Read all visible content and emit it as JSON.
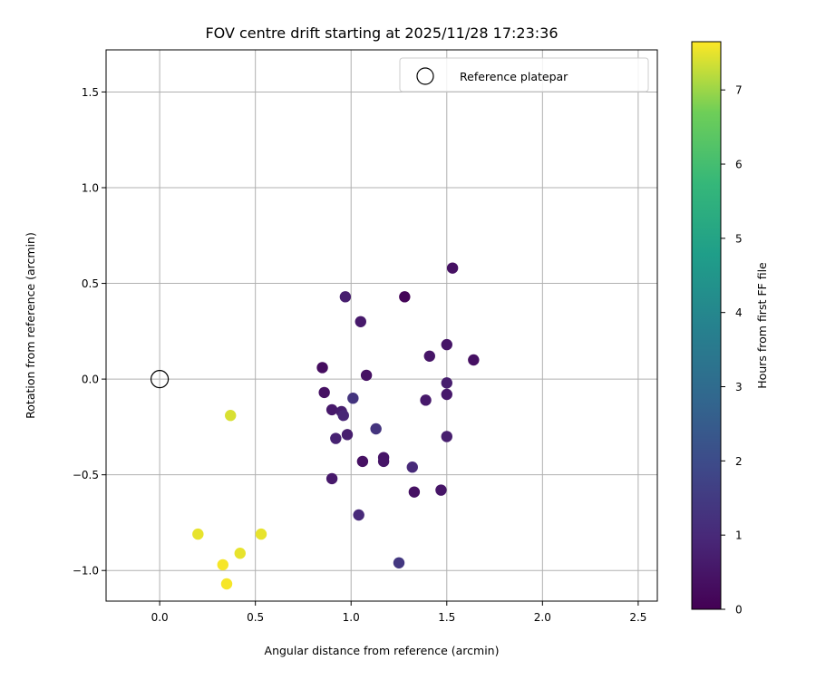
{
  "chart_data": {
    "type": "scatter",
    "title": "FOV centre drift starting at 2025/11/28 17:23:36",
    "xlabel": "Angular distance from reference (arcmin)",
    "ylabel": "Rotation from reference (arcmin)",
    "xlim": [
      -0.28,
      2.6
    ],
    "ylim": [
      -1.16,
      1.72
    ],
    "xticks": [
      0.0,
      0.5,
      1.0,
      1.5,
      2.0,
      2.5
    ],
    "xtick_labels": [
      "0.0",
      "0.5",
      "1.0",
      "1.5",
      "2.0",
      "2.5"
    ],
    "yticks": [
      -1.0,
      -0.5,
      0.0,
      0.5,
      1.0,
      1.5
    ],
    "ytick_labels": [
      "−1.0",
      "−0.5",
      "0.0",
      "0.5",
      "1.0",
      "1.5"
    ],
    "grid": true,
    "legend": {
      "location": "top-right",
      "entries": [
        {
          "label": "Reference platepar",
          "marker": "open-circle"
        }
      ]
    },
    "reference_point": {
      "x": 0.0,
      "y": 0.0
    },
    "colorbar": {
      "label": "Hours from first FF file",
      "colormap": "viridis",
      "range": [
        0,
        7.65
      ],
      "ticks": [
        0,
        1,
        2,
        3,
        4,
        5,
        6,
        7
      ],
      "tick_labels": [
        "0",
        "1",
        "2",
        "3",
        "4",
        "5",
        "6",
        "7"
      ]
    },
    "points": [
      {
        "x": 1.53,
        "y": 0.58,
        "hours": 0.4
      },
      {
        "x": 1.28,
        "y": 0.43,
        "hours": 0.1
      },
      {
        "x": 0.97,
        "y": 0.43,
        "hours": 0.7
      },
      {
        "x": 1.05,
        "y": 0.3,
        "hours": 0.6
      },
      {
        "x": 1.5,
        "y": 0.18,
        "hours": 0.5
      },
      {
        "x": 1.41,
        "y": 0.12,
        "hours": 0.5
      },
      {
        "x": 1.64,
        "y": 0.1,
        "hours": 0.4
      },
      {
        "x": 0.85,
        "y": 0.06,
        "hours": 0.3
      },
      {
        "x": 1.08,
        "y": 0.02,
        "hours": 0.4
      },
      {
        "x": 1.5,
        "y": -0.02,
        "hours": 0.7
      },
      {
        "x": 0.86,
        "y": -0.07,
        "hours": 0.4
      },
      {
        "x": 1.5,
        "y": -0.08,
        "hours": 0.6
      },
      {
        "x": 1.01,
        "y": -0.1,
        "hours": 1.3
      },
      {
        "x": 1.39,
        "y": -0.11,
        "hours": 0.6
      },
      {
        "x": 0.9,
        "y": -0.16,
        "hours": 0.6
      },
      {
        "x": 0.95,
        "y": -0.17,
        "hours": 0.7
      },
      {
        "x": 0.96,
        "y": -0.19,
        "hours": 0.9
      },
      {
        "x": 0.37,
        "y": -0.19,
        "hours": 7.4
      },
      {
        "x": 1.13,
        "y": -0.26,
        "hours": 1.3
      },
      {
        "x": 0.98,
        "y": -0.29,
        "hours": 0.7
      },
      {
        "x": 0.92,
        "y": -0.31,
        "hours": 0.8
      },
      {
        "x": 1.5,
        "y": -0.3,
        "hours": 0.7
      },
      {
        "x": 1.17,
        "y": -0.41,
        "hours": 0.5
      },
      {
        "x": 1.06,
        "y": -0.43,
        "hours": 0.4
      },
      {
        "x": 1.17,
        "y": -0.43,
        "hours": 0.5
      },
      {
        "x": 1.32,
        "y": -0.46,
        "hours": 1.0
      },
      {
        "x": 0.9,
        "y": -0.52,
        "hours": 0.6
      },
      {
        "x": 1.47,
        "y": -0.58,
        "hours": 0.5
      },
      {
        "x": 1.33,
        "y": -0.59,
        "hours": 0.4
      },
      {
        "x": 1.04,
        "y": -0.71,
        "hours": 1.0
      },
      {
        "x": 0.2,
        "y": -0.81,
        "hours": 7.5
      },
      {
        "x": 0.53,
        "y": -0.81,
        "hours": 7.5
      },
      {
        "x": 0.42,
        "y": -0.91,
        "hours": 7.5
      },
      {
        "x": 1.25,
        "y": -0.96,
        "hours": 1.4
      },
      {
        "x": 0.33,
        "y": -0.97,
        "hours": 7.6
      },
      {
        "x": 0.35,
        "y": -1.07,
        "hours": 7.6
      }
    ]
  }
}
